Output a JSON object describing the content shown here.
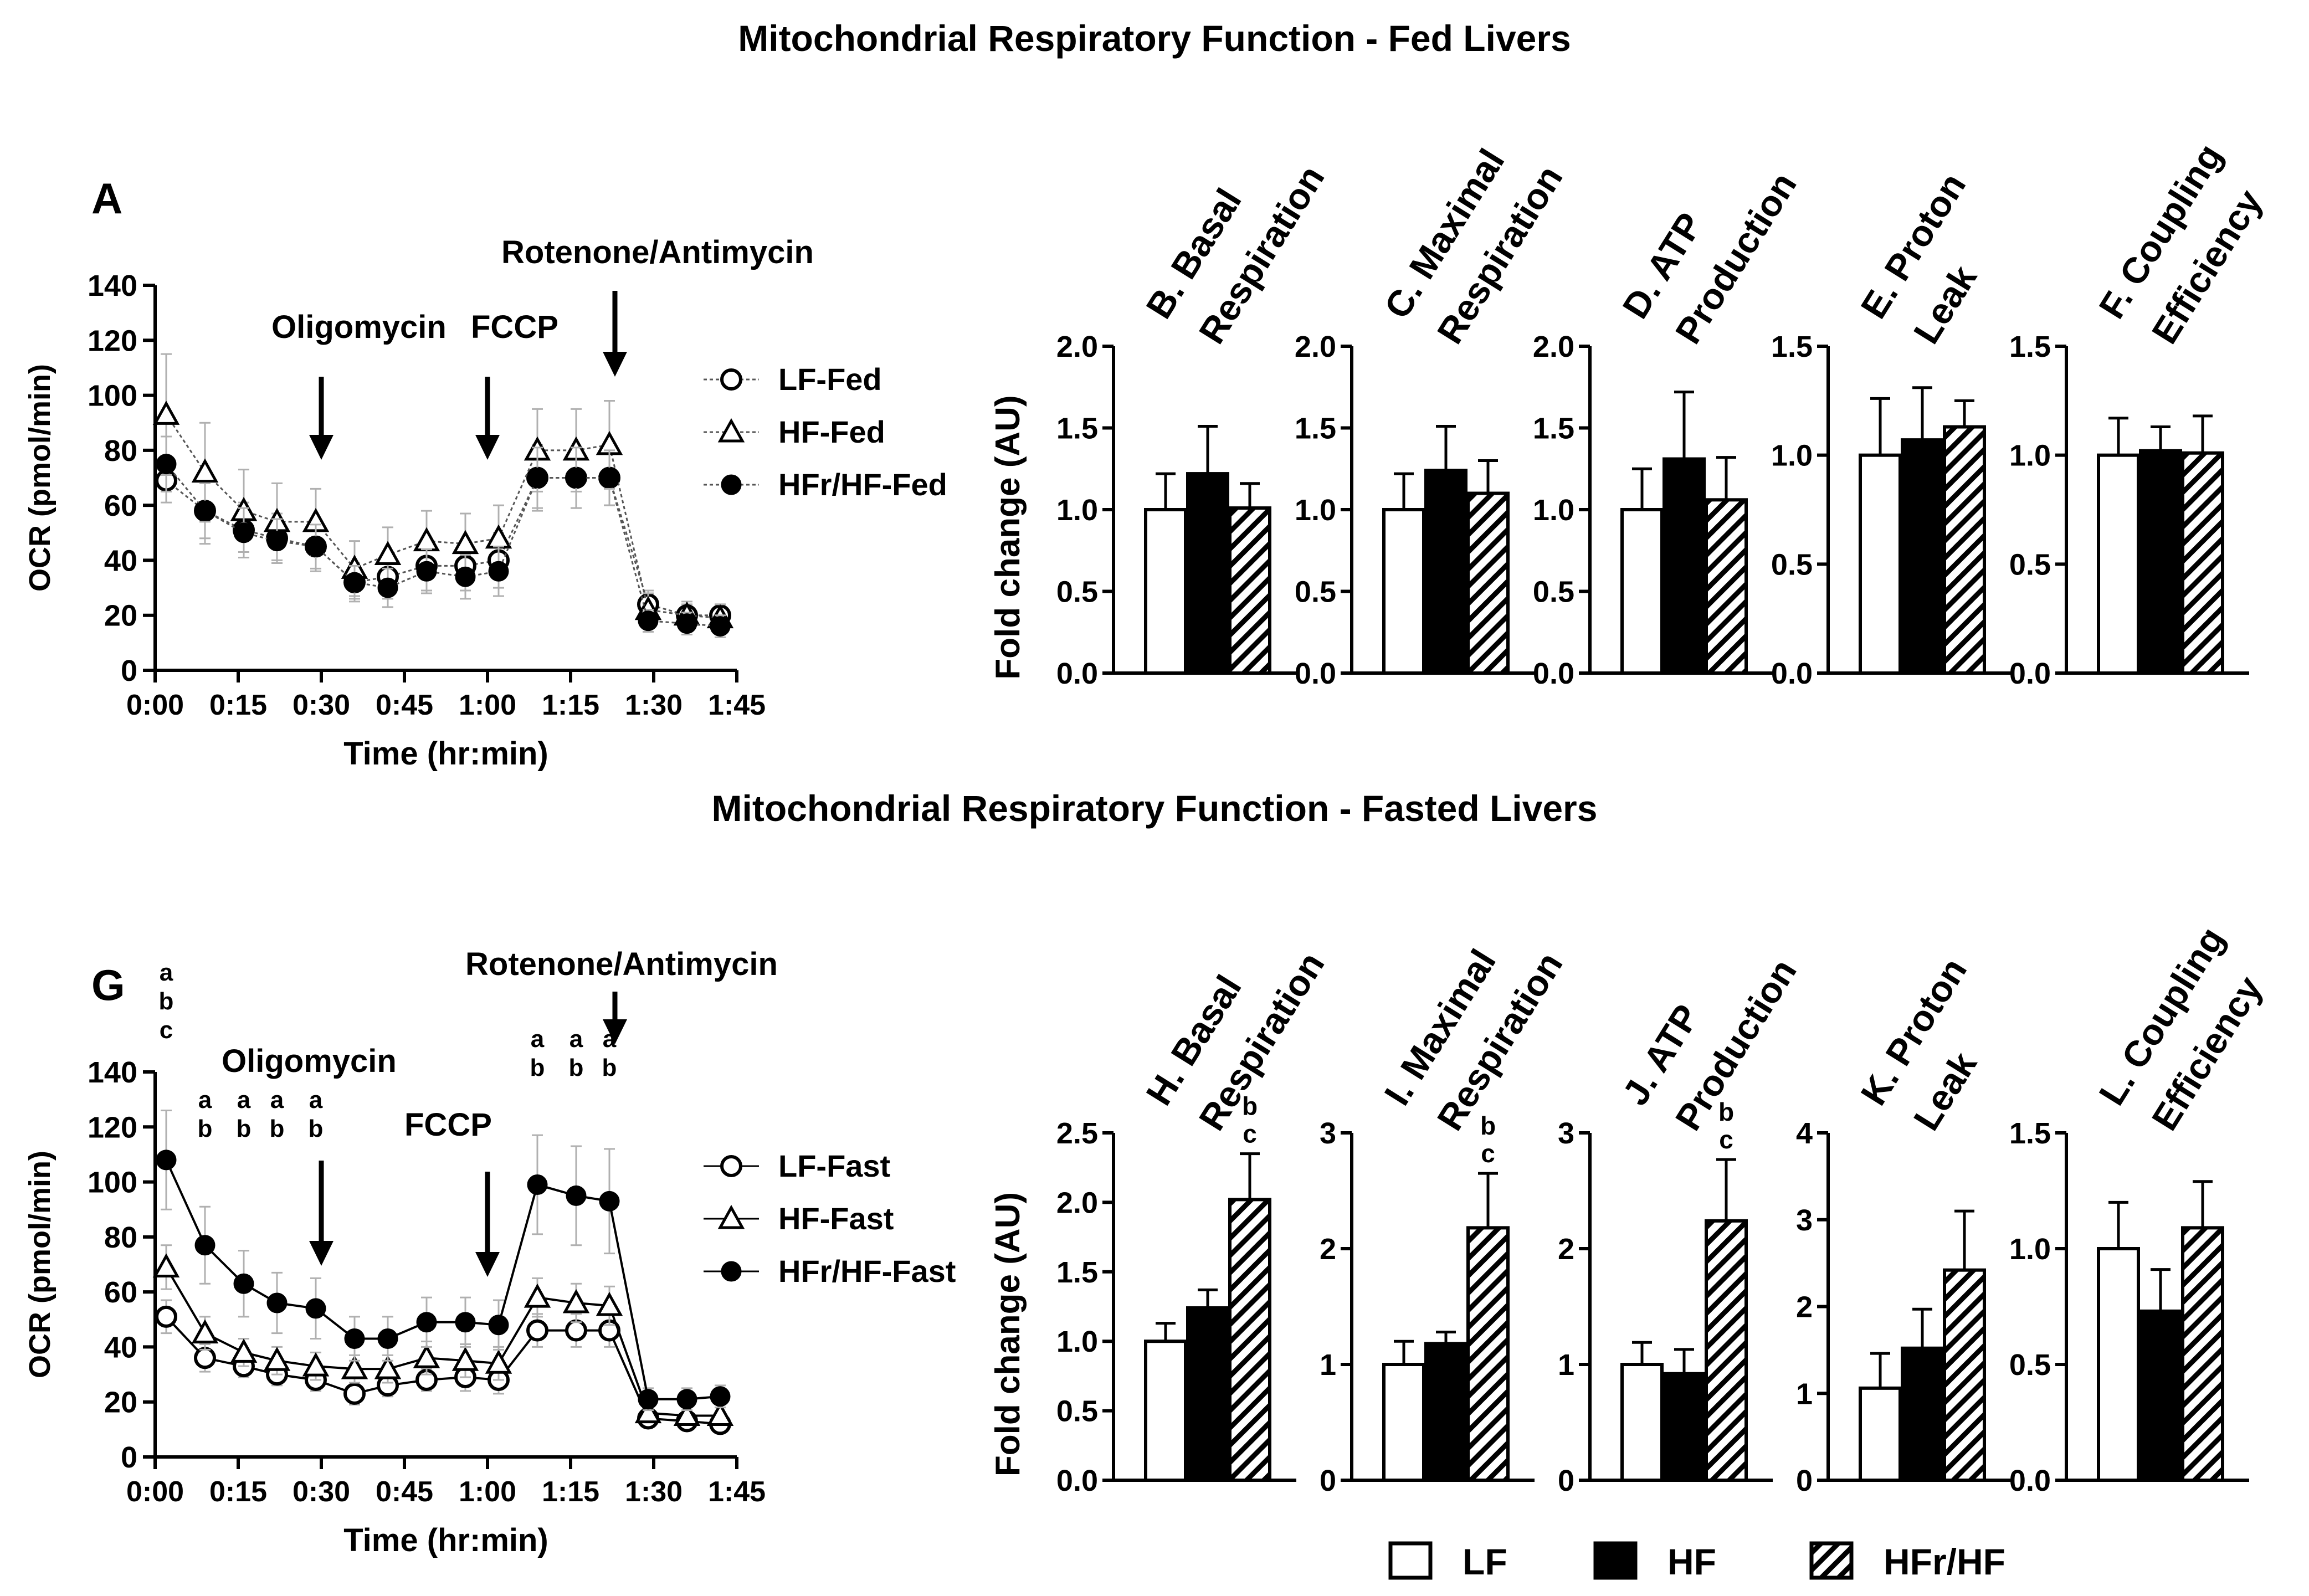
{
  "titles": {
    "fed": "Mitochondrial Respiratory Function - Fed Livers",
    "fasted": "Mitochondrial Respiratory Function - Fasted Livers"
  },
  "legend": {
    "lf": "LF",
    "hf": "HF",
    "hfr": "HFr/HF"
  },
  "colors": {
    "black": "#000000",
    "error_bar": "#b0b0b0",
    "background": "#ffffff"
  },
  "chart_data": [
    {
      "type": "line",
      "panel": "A",
      "ylabel": "OCR (pmol/min)",
      "xlabel": "Time (hr:min)",
      "ylim": [
        0,
        140
      ],
      "yticks": [
        0,
        20,
        40,
        60,
        80,
        100,
        120,
        140
      ],
      "xlim_min": [
        0,
        105
      ],
      "xticks_min": [
        0,
        15,
        30,
        45,
        60,
        75,
        90,
        105
      ],
      "xtick_labels": [
        "0:00",
        "0:15",
        "0:30",
        "0:45",
        "1:00",
        "1:15",
        "1:30",
        "1:45"
      ],
      "x_min": [
        2,
        9,
        16,
        22,
        29,
        36,
        42,
        49,
        56,
        62,
        69,
        76,
        82,
        89,
        96,
        102
      ],
      "injections": [
        {
          "label": "Oligomycin",
          "x_min": 30
        },
        {
          "label": "FCCP",
          "x_min": 60
        },
        {
          "label": "Rotenone/Antimycin",
          "x_min": 83
        }
      ],
      "series": [
        {
          "name": "LF-Fed",
          "marker": "open-circle",
          "values": [
            69,
            58,
            51,
            48,
            45,
            32,
            34,
            38,
            38,
            40,
            70,
            70,
            70,
            24,
            20,
            20
          ],
          "errors": [
            8,
            12,
            10,
            9,
            9,
            7,
            8,
            9,
            9,
            10,
            12,
            11,
            10,
            5,
            4,
            4
          ]
        },
        {
          "name": "HF-Fed",
          "marker": "open-triangle",
          "values": [
            93,
            72,
            58,
            54,
            54,
            37,
            42,
            47,
            46,
            48,
            80,
            80,
            82,
            22,
            20,
            19
          ],
          "errors": [
            22,
            18,
            15,
            14,
            12,
            10,
            10,
            11,
            11,
            12,
            15,
            15,
            16,
            6,
            5,
            5
          ]
        },
        {
          "name": "HFr/HF-Fed",
          "marker": "filled-circle",
          "values": [
            75,
            58,
            50,
            47,
            45,
            32,
            30,
            36,
            34,
            36,
            70,
            70,
            70,
            18,
            17,
            16
          ],
          "errors": [
            10,
            10,
            9,
            8,
            8,
            6,
            7,
            8,
            8,
            9,
            11,
            11,
            10,
            4,
            4,
            4
          ]
        }
      ],
      "legend_position": "right"
    },
    {
      "type": "bar",
      "panel": "B",
      "title_lines": [
        "B. Basal",
        "Respiration"
      ],
      "ylabel": "Fold change (AU)",
      "ylim": [
        0,
        2.0
      ],
      "yticks": [
        "0.0",
        "0.5",
        "1.0",
        "1.5",
        "2.0"
      ],
      "categories": [
        "LF",
        "HF",
        "HFr/HF"
      ],
      "values": [
        1.0,
        1.22,
        1.01
      ],
      "errors": [
        0.22,
        0.29,
        0.15
      ]
    },
    {
      "type": "bar",
      "panel": "C",
      "title_lines": [
        "C. Maximal",
        "Respiration"
      ],
      "ylim": [
        0,
        2.0
      ],
      "yticks": [
        "0.0",
        "0.5",
        "1.0",
        "1.5",
        "2.0"
      ],
      "categories": [
        "LF",
        "HF",
        "HFr/HF"
      ],
      "values": [
        1.0,
        1.24,
        1.1
      ],
      "errors": [
        0.22,
        0.27,
        0.2
      ]
    },
    {
      "type": "bar",
      "panel": "D",
      "title_lines": [
        "D. ATP",
        "Production"
      ],
      "ylim": [
        0,
        2.0
      ],
      "yticks": [
        "0.0",
        "0.5",
        "1.0",
        "1.5",
        "2.0"
      ],
      "categories": [
        "LF",
        "HF",
        "HFr/HF"
      ],
      "values": [
        1.0,
        1.31,
        1.06
      ],
      "errors": [
        0.25,
        0.41,
        0.26
      ]
    },
    {
      "type": "bar",
      "panel": "E",
      "title_lines": [
        "E. Proton",
        "Leak"
      ],
      "ylim": [
        0,
        1.5
      ],
      "yticks": [
        "0.0",
        "0.5",
        "1.0",
        "1.5"
      ],
      "categories": [
        "LF",
        "HF",
        "HFr/HF"
      ],
      "values": [
        1.0,
        1.07,
        1.13
      ],
      "errors": [
        0.26,
        0.24,
        0.12
      ]
    },
    {
      "type": "bar",
      "panel": "F",
      "title_lines": [
        "F. Coupling",
        "Efficiency"
      ],
      "ylim": [
        0,
        1.5
      ],
      "yticks": [
        "0.0",
        "0.5",
        "1.0",
        "1.5"
      ],
      "categories": [
        "LF",
        "HF",
        "HFr/HF"
      ],
      "values": [
        1.0,
        1.02,
        1.01
      ],
      "errors": [
        0.17,
        0.11,
        0.17
      ]
    },
    {
      "type": "line",
      "panel": "G",
      "ylabel": "OCR (pmol/min)",
      "xlabel": "Time (hr:min)",
      "ylim": [
        0,
        140
      ],
      "yticks": [
        0,
        20,
        40,
        60,
        80,
        100,
        120,
        140
      ],
      "xlim_min": [
        0,
        105
      ],
      "xticks_min": [
        0,
        15,
        30,
        45,
        60,
        75,
        90,
        105
      ],
      "xtick_labels": [
        "0:00",
        "0:15",
        "0:30",
        "0:45",
        "1:00",
        "1:15",
        "1:30",
        "1:45"
      ],
      "x_min": [
        2,
        9,
        16,
        22,
        29,
        36,
        42,
        49,
        56,
        62,
        69,
        76,
        82,
        89,
        96,
        102
      ],
      "injections": [
        {
          "label": "Oligomycin",
          "x_min": 30
        },
        {
          "label": "FCCP",
          "x_min": 60
        },
        {
          "label": "Rotenone/Antimycin",
          "x_min": 83
        }
      ],
      "significance": [
        {
          "x_min": 2,
          "letters": [
            "a",
            "b",
            "c"
          ]
        },
        {
          "x_min": 9,
          "letters": [
            "a",
            "b"
          ]
        },
        {
          "x_min": 16,
          "letters": [
            "a",
            "b"
          ]
        },
        {
          "x_min": 22,
          "letters": [
            "a",
            "b"
          ]
        },
        {
          "x_min": 29,
          "letters": [
            "a",
            "b"
          ]
        },
        {
          "x_min": 69,
          "letters": [
            "a",
            "b"
          ]
        },
        {
          "x_min": 76,
          "letters": [
            "a",
            "b"
          ]
        },
        {
          "x_min": 82,
          "letters": [
            "a",
            "b"
          ]
        }
      ],
      "series": [
        {
          "name": "LF-Fast",
          "marker": "open-circle",
          "values": [
            51,
            36,
            33,
            30,
            28,
            23,
            26,
            28,
            29,
            28,
            46,
            46,
            46,
            14,
            13,
            12
          ],
          "errors": [
            6,
            5,
            4,
            4,
            4,
            4,
            4,
            4,
            5,
            5,
            6,
            6,
            6,
            3,
            3,
            3
          ]
        },
        {
          "name": "HF-Fast",
          "marker": "open-triangle",
          "values": [
            69,
            45,
            38,
            35,
            33,
            32,
            32,
            36,
            35,
            34,
            58,
            56,
            55,
            16,
            15,
            15
          ],
          "errors": [
            8,
            6,
            5,
            5,
            5,
            5,
            5,
            6,
            6,
            6,
            7,
            7,
            7,
            3,
            3,
            3
          ]
        },
        {
          "name": "HFr/HF-Fast",
          "marker": "filled-circle",
          "values": [
            108,
            77,
            63,
            56,
            54,
            43,
            43,
            49,
            49,
            48,
            99,
            95,
            93,
            21,
            21,
            22
          ],
          "errors": [
            18,
            14,
            12,
            11,
            11,
            8,
            8,
            9,
            9,
            9,
            18,
            18,
            19,
            4,
            4,
            4
          ]
        }
      ],
      "legend_position": "right"
    },
    {
      "type": "bar",
      "panel": "H",
      "title_lines": [
        "H. Basal",
        "Respiration"
      ],
      "ylabel": "Fold change (AU)",
      "ylim": [
        0,
        2.5
      ],
      "yticks": [
        "0.0",
        "0.5",
        "1.0",
        "1.5",
        "2.0",
        "2.5"
      ],
      "categories": [
        "LF",
        "HF",
        "HFr/HF"
      ],
      "values": [
        1.0,
        1.24,
        2.02
      ],
      "errors": [
        0.13,
        0.13,
        0.33
      ],
      "sig_letters": [
        [],
        [],
        [
          "b",
          "c"
        ]
      ]
    },
    {
      "type": "bar",
      "panel": "I",
      "title_lines": [
        "I. Maximal",
        "Respiration"
      ],
      "ylim": [
        0,
        3
      ],
      "yticks": [
        "0",
        "1",
        "2",
        "3"
      ],
      "categories": [
        "LF",
        "HF",
        "HFr/HF"
      ],
      "values": [
        1.0,
        1.18,
        2.18
      ],
      "errors": [
        0.2,
        0.1,
        0.47
      ],
      "sig_letters": [
        [],
        [],
        [
          "b",
          "c"
        ]
      ]
    },
    {
      "type": "bar",
      "panel": "J",
      "title_lines": [
        "J. ATP",
        "Production"
      ],
      "ylim": [
        0,
        3
      ],
      "yticks": [
        "0",
        "1",
        "2",
        "3"
      ],
      "categories": [
        "LF",
        "HF",
        "HFr/HF"
      ],
      "values": [
        1.0,
        0.92,
        2.24
      ],
      "errors": [
        0.19,
        0.21,
        0.53
      ],
      "sig_letters": [
        [],
        [],
        [
          "b",
          "c"
        ]
      ]
    },
    {
      "type": "bar",
      "panel": "K",
      "title_lines": [
        "K. Proton",
        "Leak"
      ],
      "ylim": [
        0,
        4
      ],
      "yticks": [
        "0",
        "1",
        "2",
        "3",
        "4"
      ],
      "categories": [
        "LF",
        "HF",
        "HFr/HF"
      ],
      "values": [
        1.06,
        1.52,
        2.42
      ],
      "errors": [
        0.4,
        0.45,
        0.68
      ]
    },
    {
      "type": "bar",
      "panel": "L",
      "title_lines": [
        "L. Coupling",
        "Efficiency"
      ],
      "ylim": [
        0,
        1.5
      ],
      "yticks": [
        "0.0",
        "0.5",
        "1.0",
        "1.5"
      ],
      "categories": [
        "LF",
        "HF",
        "HFr/HF"
      ],
      "values": [
        1.0,
        0.73,
        1.09
      ],
      "errors": [
        0.2,
        0.18,
        0.2
      ]
    }
  ]
}
